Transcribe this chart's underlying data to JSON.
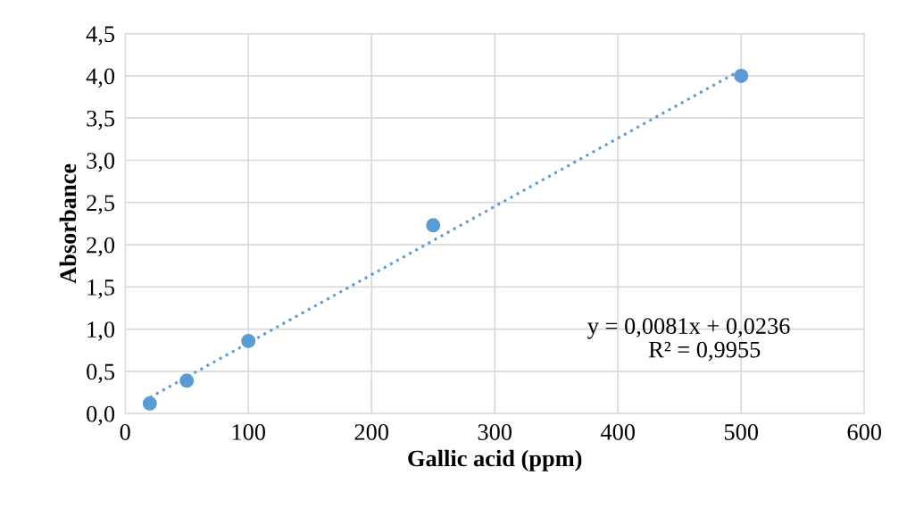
{
  "chart_data": {
    "type": "scatter",
    "xlabel": "Gallic acid (ppm)",
    "ylabel": "Absorbance",
    "series": [
      {
        "color": "#5b9bd5",
        "marker": "circle",
        "x": [
          20,
          50,
          100,
          250,
          500
        ],
        "values": [
          0.12,
          0.39,
          0.86,
          2.23,
          4.0
        ]
      },
      {
        "type": "line",
        "color": "#5b9bd5",
        "line_style": "dotted",
        "marker": "none",
        "x": [
          20,
          500
        ],
        "values": [
          0.19,
          4.07
        ]
      }
    ],
    "xlim": [
      0,
      600
    ],
    "xticks": [
      0,
      100,
      200,
      300,
      400,
      500,
      600
    ],
    "ylim": [
      0,
      4.5
    ],
    "yticks": [
      {
        "value": 0,
        "label": "0,0"
      },
      {
        "value": 0.5,
        "label": "0,5"
      },
      {
        "value": 1,
        "label": "1,0"
      },
      {
        "value": 1.5,
        "label": "1,5"
      },
      {
        "value": 2,
        "label": "2,0"
      },
      {
        "value": 2.5,
        "label": "2,5"
      },
      {
        "value": 3,
        "label": "3,0"
      },
      {
        "value": 3.5,
        "label": "3,5"
      },
      {
        "value": 4,
        "label": "4,0"
      },
      {
        "value": 4.5,
        "label": "4,5"
      }
    ],
    "grid": true,
    "annotations": [
      "y = 0,0081x + 0,0236",
      "R² = 0,9955"
    ]
  }
}
